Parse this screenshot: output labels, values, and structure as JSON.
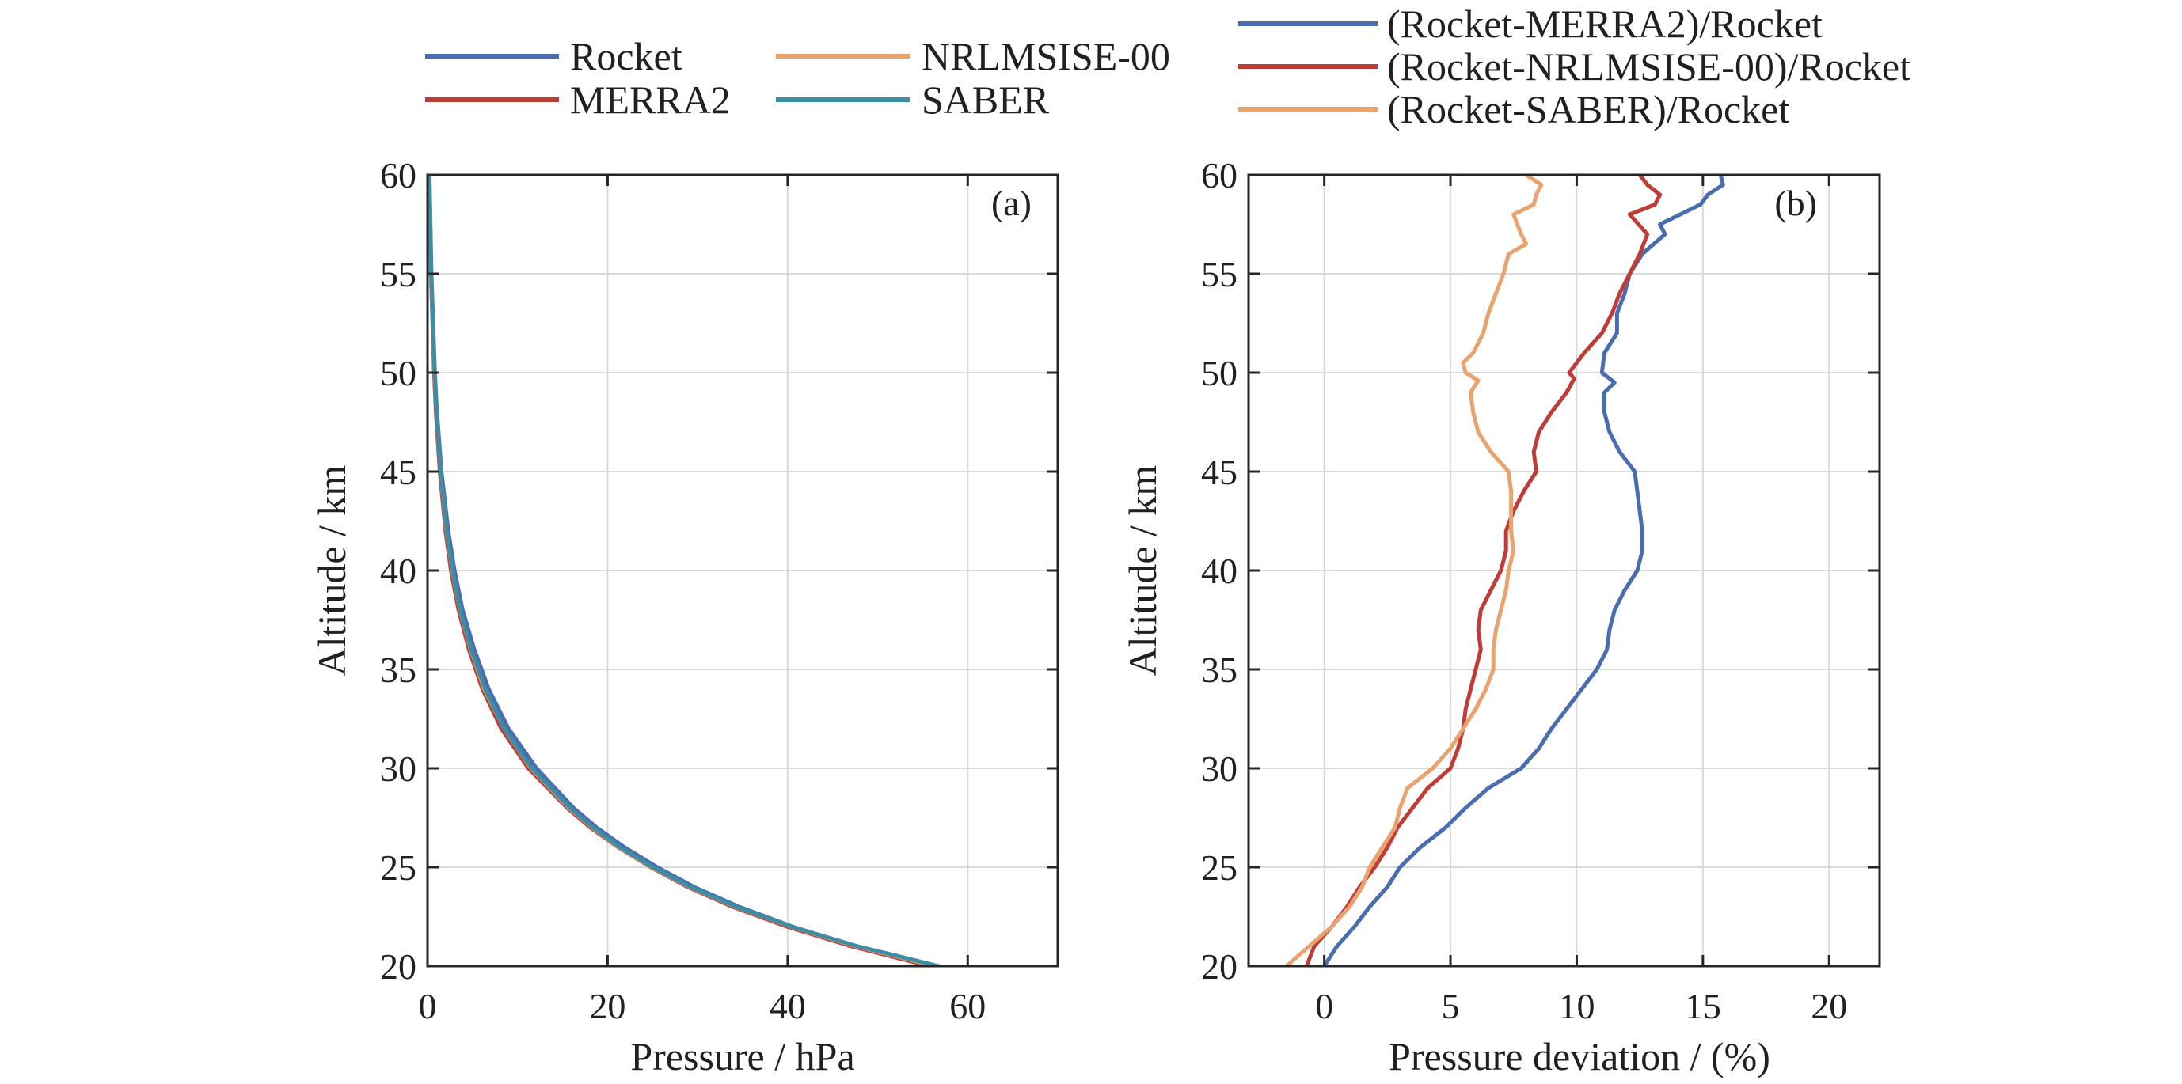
{
  "legend_left": [
    {
      "label": "Rocket",
      "color": "#4a6db2"
    },
    {
      "label": "NRLMSISE-00",
      "color": "#e8a36e"
    },
    {
      "label": "MERRA2",
      "color": "#c03d37"
    },
    {
      "label": "SABER",
      "color": "#3e8ea3"
    }
  ],
  "legend_right": [
    {
      "label": "(Rocket-MERRA2)/Rocket",
      "color": "#4a6db2"
    },
    {
      "label": "(Rocket-NRLMSISE-00)/Rocket",
      "color": "#c03d37"
    },
    {
      "label": "(Rocket-SABER)/Rocket",
      "color": "#e8a36e"
    }
  ],
  "chart_data": [
    {
      "type": "line",
      "panel": "(a)",
      "title": "",
      "xlabel": "Pressure / hPa",
      "ylabel": "Altitude / km",
      "xlim": [
        0,
        70
      ],
      "ylim": [
        20,
        60
      ],
      "xticks": [
        0,
        20,
        40,
        60
      ],
      "yticks": [
        20,
        25,
        30,
        35,
        40,
        45,
        50,
        55,
        60
      ],
      "grid": true,
      "series": [
        {
          "name": "Rocket",
          "color": "#4a6db2",
          "altitude": [
            20,
            21,
            22,
            23,
            24,
            25,
            26,
            27,
            28,
            30,
            32,
            34,
            36,
            38,
            40,
            42,
            45,
            48,
            50,
            55,
            60
          ],
          "pressure": [
            56.0,
            47.5,
            40.5,
            34.6,
            29.6,
            25.5,
            21.9,
            18.8,
            16.2,
            12.1,
            9.0,
            6.8,
            5.2,
            3.9,
            3.0,
            2.3,
            1.55,
            1.05,
            0.82,
            0.43,
            0.22
          ]
        },
        {
          "name": "MERRA2",
          "color": "#c03d37",
          "altitude": [
            20,
            21,
            22,
            23,
            24,
            25,
            26,
            27,
            28,
            30,
            32,
            34,
            36,
            38,
            40,
            42,
            45,
            48,
            50,
            55,
            60
          ],
          "pressure": [
            55.8,
            47.1,
            39.9,
            33.9,
            28.9,
            24.8,
            21.2,
            18.1,
            15.5,
            11.2,
            8.2,
            6.1,
            4.6,
            3.45,
            2.6,
            2.0,
            1.36,
            0.93,
            0.73,
            0.38,
            0.19
          ]
        },
        {
          "name": "NRLMSISE-00",
          "color": "#e8a36e",
          "altitude": [
            20,
            21,
            22,
            23,
            24,
            25,
            26,
            27,
            28,
            30,
            32,
            34,
            36,
            38,
            40,
            42,
            45,
            48,
            50,
            55,
            60
          ],
          "pressure": [
            56.4,
            47.6,
            40.3,
            34.2,
            29.1,
            24.9,
            21.3,
            18.3,
            15.7,
            11.5,
            8.5,
            6.3,
            4.8,
            3.6,
            2.75,
            2.1,
            1.43,
            0.99,
            0.77,
            0.38,
            0.2
          ]
        },
        {
          "name": "SABER",
          "color": "#3e8ea3",
          "altitude": [
            20,
            21,
            22,
            23,
            24,
            25,
            26,
            27,
            28,
            30,
            32,
            34,
            36,
            38,
            40,
            42,
            45,
            48,
            50,
            55,
            60
          ],
          "pressure": [
            56.8,
            47.8,
            40.4,
            34.3,
            29.2,
            25.0,
            21.4,
            18.4,
            15.8,
            11.6,
            8.5,
            6.4,
            4.85,
            3.62,
            2.78,
            2.13,
            1.44,
            0.99,
            0.78,
            0.4,
            0.2
          ]
        }
      ],
      "annotation": "(a)"
    },
    {
      "type": "line",
      "panel": "(b)",
      "title": "",
      "xlabel": "Pressure deviation / (%)",
      "ylabel": "Altitude / km",
      "xlim": [
        -3,
        22
      ],
      "ylim": [
        20,
        60
      ],
      "xticks": [
        0,
        5,
        10,
        15,
        20
      ],
      "yticks": [
        20,
        25,
        30,
        35,
        40,
        45,
        50,
        55,
        60
      ],
      "grid": true,
      "series": [
        {
          "name": "(Rocket-MERRA2)/Rocket",
          "color": "#4a6db2",
          "altitude": [
            20,
            21,
            22,
            23,
            24,
            25,
            26,
            27,
            28,
            29,
            30,
            31,
            32,
            33,
            34,
            35,
            36,
            37,
            38,
            39,
            40,
            41,
            42,
            43,
            44,
            45,
            46,
            47,
            48,
            49,
            49.5,
            50,
            51,
            52,
            53,
            54,
            55,
            56,
            57,
            57.5,
            58.5,
            59,
            59.5,
            60
          ],
          "deviation": [
            0.0,
            0.5,
            1.2,
            1.8,
            2.5,
            3.0,
            3.8,
            4.8,
            5.6,
            6.5,
            7.8,
            8.5,
            9.0,
            9.6,
            10.2,
            10.8,
            11.2,
            11.3,
            11.5,
            11.9,
            12.4,
            12.6,
            12.6,
            12.5,
            12.4,
            12.3,
            11.7,
            11.3,
            11.1,
            11.1,
            11.5,
            11.0,
            11.1,
            11.6,
            11.6,
            11.9,
            12.1,
            12.6,
            13.5,
            13.3,
            14.9,
            15.2,
            15.8,
            15.7
          ]
        },
        {
          "name": "(Rocket-NRLMSISE-00)/Rocket",
          "color": "#c03d37",
          "altitude": [
            20,
            21,
            22,
            23,
            24,
            25,
            26,
            27,
            28,
            29,
            30,
            31,
            32,
            33,
            34,
            35,
            36,
            37,
            38,
            39,
            40,
            41,
            42,
            43,
            44,
            45,
            46,
            47,
            48,
            49,
            49.7,
            50,
            51,
            52,
            53,
            54,
            55,
            56,
            57,
            58,
            58.5,
            59,
            59.5,
            60
          ],
          "deviation": [
            -0.7,
            -0.4,
            0.3,
            0.9,
            1.4,
            2.0,
            2.5,
            2.9,
            3.5,
            4.1,
            5.0,
            5.3,
            5.5,
            5.6,
            5.8,
            6.0,
            6.2,
            6.1,
            6.2,
            6.6,
            7.0,
            7.2,
            7.2,
            7.5,
            7.9,
            8.4,
            8.3,
            8.5,
            9.0,
            9.6,
            9.9,
            9.7,
            10.3,
            11.0,
            11.4,
            11.7,
            12.1,
            12.5,
            12.8,
            12.1,
            13.1,
            13.3,
            12.8,
            12.5
          ]
        },
        {
          "name": "(Rocket-SABER)/Rocket",
          "color": "#e8a36e",
          "altitude": [
            20,
            21,
            22,
            23,
            24,
            25,
            26,
            27,
            28,
            29,
            30,
            31,
            32,
            33,
            34,
            35,
            36,
            37,
            38,
            39,
            40,
            41,
            42,
            43,
            44,
            45,
            46,
            47,
            48,
            49,
            49.6,
            50,
            50.5,
            51,
            52,
            53,
            54,
            55,
            56,
            56.5,
            57,
            58,
            58.5,
            59,
            59.5,
            60
          ],
          "deviation": [
            -1.5,
            -0.6,
            0.3,
            1.0,
            1.5,
            1.8,
            2.3,
            2.8,
            3.0,
            3.3,
            4.3,
            5.0,
            5.5,
            6.0,
            6.4,
            6.7,
            6.7,
            6.8,
            7.0,
            7.2,
            7.3,
            7.5,
            7.4,
            7.4,
            7.4,
            7.3,
            6.6,
            6.1,
            5.9,
            5.8,
            6.1,
            5.6,
            5.5,
            5.9,
            6.3,
            6.5,
            6.8,
            7.1,
            7.3,
            8.0,
            7.8,
            7.5,
            8.3,
            8.4,
            8.6,
            8.0
          ]
        }
      ],
      "annotation": "(b)"
    }
  ]
}
